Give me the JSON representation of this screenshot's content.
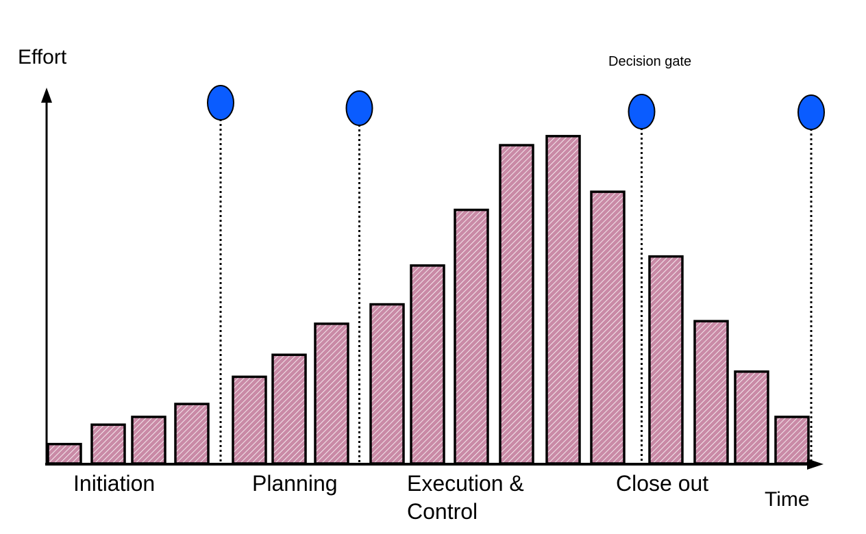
{
  "chart_data": {
    "type": "bar",
    "xlabel": "Time",
    "ylabel": "Effort",
    "values": [
      1.5,
      3.0,
      3.6,
      4.6,
      6.7,
      8.4,
      10.8,
      12.3,
      15.3,
      19.6,
      24.6,
      25.3,
      21.0,
      16.0,
      11.0,
      7.1,
      3.6
    ],
    "ylim": [
      0,
      30
    ],
    "phases": [
      "Initiation",
      "Planning",
      "Execution & Control",
      "Close out"
    ],
    "gate_note": "Decision gate",
    "gate_after_bar": [
      3,
      6,
      12,
      16
    ],
    "grid": false,
    "legend": "none"
  },
  "colors": {
    "bar_fill": "#c98aa6",
    "bar_hatch": "#ffffff",
    "gate": "#0a5cff",
    "axis": "#000000"
  }
}
